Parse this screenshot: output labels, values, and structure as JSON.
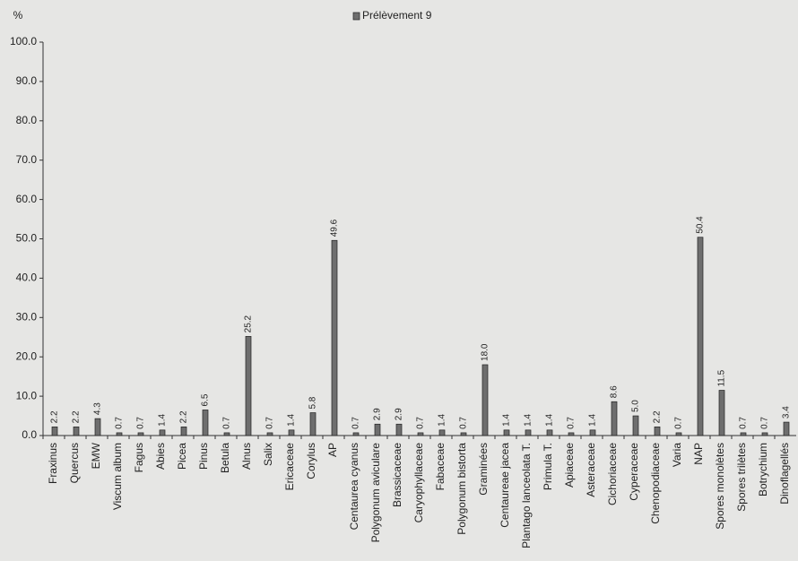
{
  "chart_data": {
    "type": "bar",
    "y_label": "%",
    "categories": [
      "Fraxinus",
      "Quercus",
      "EMW",
      "Viscum album",
      "Fagus",
      "Abies",
      "Picea",
      "Pinus",
      "Betula",
      "Alnus",
      "Salix",
      "Ericaceae",
      "Corylus",
      "AP",
      "Centaurea cyanus",
      "Polygonum aviculare",
      "Brassicaceae",
      "Caryophyllaceae",
      "Fabaceae",
      "Polygonum bistorta",
      "Graminées",
      "Centaureae jacea",
      "Plantago lanceolata T.",
      "Primula T.",
      "Apiaceae",
      "Asteraceae",
      "Cichoriaceae",
      "Cyperaceae",
      "Chenopodiaceae",
      "Varia",
      "NAP",
      "Spores monolètes",
      "Spores trilètes",
      "Botrychium",
      "Dinoflagellés"
    ],
    "series": [
      {
        "name": "Prélèvement 9",
        "color": "#6e6e6e",
        "values": [
          2.2,
          2.2,
          4.3,
          0.7,
          0.7,
          1.4,
          2.2,
          6.5,
          0.7,
          25.2,
          0.7,
          1.4,
          5.8,
          49.6,
          0.7,
          2.9,
          2.9,
          0.7,
          1.4,
          0.7,
          18.0,
          1.4,
          1.4,
          1.4,
          0.7,
          1.4,
          8.6,
          5.0,
          2.2,
          0.7,
          50.4,
          11.5,
          0.7,
          0.7,
          3.4
        ],
        "value_labels": [
          "2.2",
          "2.2",
          "4.3",
          "0.7",
          "0.7",
          "1.4",
          "2.2",
          "6.5",
          "0.7",
          "25.2",
          "0.7",
          "1.4",
          "5.8",
          "49.6",
          "0.7",
          "2.9",
          "2.9",
          "0.7",
          "1.4",
          "0.7",
          "18.0",
          "1.4",
          "1.4",
          "1.4",
          "0.7",
          "1.4",
          "8.6",
          "5.0",
          "2.2",
          "0.7",
          "50.4",
          "11.5",
          "0.7",
          "0.7",
          "3.4"
        ]
      }
    ],
    "ylim": [
      0,
      100
    ],
    "yticks": [
      {
        "value": 0,
        "label": "0.0"
      },
      {
        "value": 10,
        "label": "10.0"
      },
      {
        "value": 20,
        "label": "20.0"
      },
      {
        "value": 30,
        "label": "30.0"
      },
      {
        "value": 40,
        "label": "40.0"
      },
      {
        "value": 50,
        "label": "50.0"
      },
      {
        "value": 60,
        "label": "60.0"
      },
      {
        "value": 70,
        "label": "70.0"
      },
      {
        "value": 80,
        "label": "80.0"
      },
      {
        "value": 90,
        "label": "90.0"
      },
      {
        "value": 100,
        "label": "100.0"
      }
    ],
    "legend": "top"
  }
}
